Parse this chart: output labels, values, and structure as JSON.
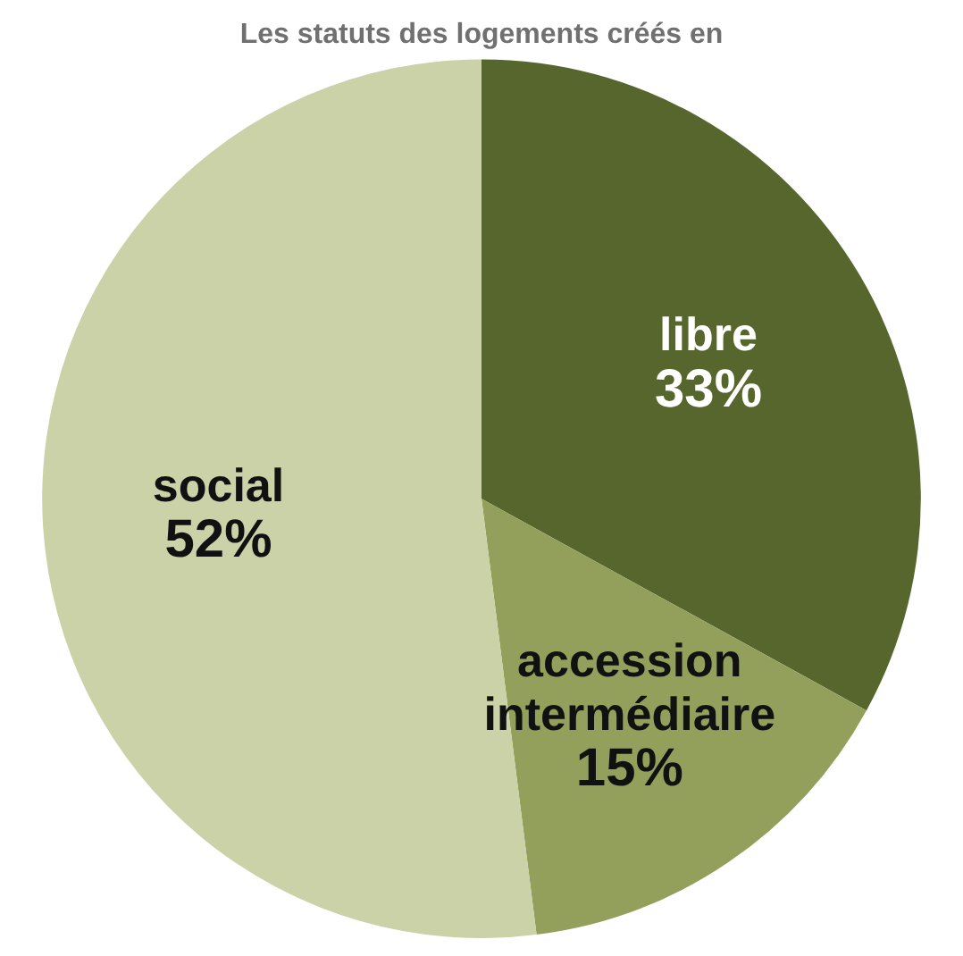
{
  "chart_data": {
    "type": "pie",
    "title": "Les statuts des logements créés en",
    "categories": [
      "libre",
      "accession intermédiaire",
      "social"
    ],
    "values": [
      33,
      15,
      52
    ],
    "colors": [
      "#56662c",
      "#93a05c",
      "#cbd2a8"
    ],
    "value_labels": [
      "33%",
      "15%",
      "52%"
    ],
    "legend": false
  }
}
